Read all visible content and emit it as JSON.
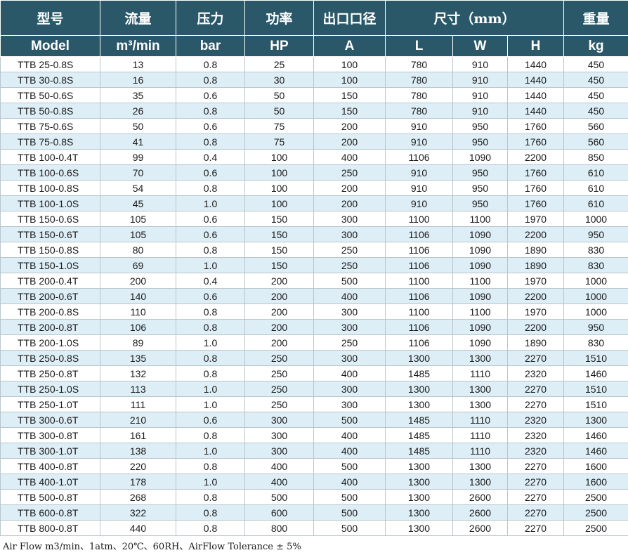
{
  "table": {
    "header_cn": {
      "model": "型号",
      "flow": "流量",
      "pressure": "压力",
      "power": "功率",
      "outlet": "出口口径",
      "size": "尺寸（mm）",
      "weight": "重量"
    },
    "header_en": {
      "model": "Model",
      "flow": "m³/min",
      "pressure": "bar",
      "power": "HP",
      "outlet": "A",
      "L": "L",
      "W": "W",
      "H": "H",
      "weight": "kg"
    },
    "rows": [
      {
        "model": "TTB  25-0.8S",
        "flow": "13",
        "pressure": "0.8",
        "hp": "25",
        "outlet": "100",
        "L": "780",
        "W": "910",
        "H": "1440",
        "kg": "450"
      },
      {
        "model": "TTB  30-0.8S",
        "flow": "16",
        "pressure": "0.8",
        "hp": "30",
        "outlet": "100",
        "L": "780",
        "W": "910",
        "H": "1440",
        "kg": "450"
      },
      {
        "model": "TTB  50-0.6S",
        "flow": "35",
        "pressure": "0.6",
        "hp": "50",
        "outlet": "150",
        "L": "780",
        "W": "910",
        "H": "1440",
        "kg": "450"
      },
      {
        "model": "TTB  50-0.8S",
        "flow": "26",
        "pressure": "0.8",
        "hp": "50",
        "outlet": "150",
        "L": "780",
        "W": "910",
        "H": "1440",
        "kg": "450"
      },
      {
        "model": "TTB  75-0.6S",
        "flow": "50",
        "pressure": "0.6",
        "hp": "75",
        "outlet": "200",
        "L": "910",
        "W": "950",
        "H": "1760",
        "kg": "560"
      },
      {
        "model": "TTB  75-0.8S",
        "flow": "41",
        "pressure": "0.8",
        "hp": "75",
        "outlet": "200",
        "L": "910",
        "W": "950",
        "H": "1760",
        "kg": "560"
      },
      {
        "model": "TTB 100-0.4T",
        "flow": "99",
        "pressure": "0.4",
        "hp": "100",
        "outlet": "400",
        "L": "1106",
        "W": "1090",
        "H": "2200",
        "kg": "850"
      },
      {
        "model": "TTB 100-0.6S",
        "flow": "70",
        "pressure": "0.6",
        "hp": "100",
        "outlet": "250",
        "L": "910",
        "W": "950",
        "H": "1760",
        "kg": "610"
      },
      {
        "model": "TTB 100-0.8S",
        "flow": "54",
        "pressure": "0.8",
        "hp": "100",
        "outlet": "200",
        "L": "910",
        "W": "950",
        "H": "1760",
        "kg": "610"
      },
      {
        "model": "TTB 100-1.0S",
        "flow": "45",
        "pressure": "1.0",
        "hp": "100",
        "outlet": "200",
        "L": "910",
        "W": "950",
        "H": "1760",
        "kg": "610"
      },
      {
        "model": "TTB 150-0.6S",
        "flow": "105",
        "pressure": "0.6",
        "hp": "150",
        "outlet": "300",
        "L": "1100",
        "W": "1100",
        "H": "1970",
        "kg": "1000"
      },
      {
        "model": "TTB 150-0.6T",
        "flow": "105",
        "pressure": "0.6",
        "hp": "150",
        "outlet": "300",
        "L": "1106",
        "W": "1090",
        "H": "2200",
        "kg": "950"
      },
      {
        "model": "TTB 150-0.8S",
        "flow": "80",
        "pressure": "0.8",
        "hp": "150",
        "outlet": "250",
        "L": "1106",
        "W": "1090",
        "H": "1890",
        "kg": "830"
      },
      {
        "model": "TTB 150-1.0S",
        "flow": "69",
        "pressure": "1.0",
        "hp": "150",
        "outlet": "250",
        "L": "1106",
        "W": "1090",
        "H": "1890",
        "kg": "830"
      },
      {
        "model": "TTB 200-0.4T",
        "flow": "200",
        "pressure": "0.4",
        "hp": "200",
        "outlet": "500",
        "L": "1100",
        "W": "1100",
        "H": "1970",
        "kg": "1000"
      },
      {
        "model": "TTB 200-0.6T",
        "flow": "140",
        "pressure": "0.6",
        "hp": "200",
        "outlet": "400",
        "L": "1106",
        "W": "1090",
        "H": "2200",
        "kg": "1000"
      },
      {
        "model": "TTB 200-0.8S",
        "flow": "110",
        "pressure": "0.8",
        "hp": "200",
        "outlet": "300",
        "L": "1100",
        "W": "1100",
        "H": "1970",
        "kg": "1000"
      },
      {
        "model": "TTB 200-0.8T",
        "flow": "106",
        "pressure": "0.8",
        "hp": "200",
        "outlet": "300",
        "L": "1106",
        "W": "1090",
        "H": "2200",
        "kg": "950"
      },
      {
        "model": "TTB 200-1.0S",
        "flow": "89",
        "pressure": "1.0",
        "hp": "200",
        "outlet": "250",
        "L": "1106",
        "W": "1090",
        "H": "1890",
        "kg": "830"
      },
      {
        "model": "TTB 250-0.8S",
        "flow": "135",
        "pressure": "0.8",
        "hp": "250",
        "outlet": "300",
        "L": "1300",
        "W": "1300",
        "H": "2270",
        "kg": "1510"
      },
      {
        "model": "TTB 250-0.8T",
        "flow": "132",
        "pressure": "0.8",
        "hp": "250",
        "outlet": "400",
        "L": "1485",
        "W": "1110",
        "H": "2320",
        "kg": "1460"
      },
      {
        "model": "TTB 250-1.0S",
        "flow": "113",
        "pressure": "1.0",
        "hp": "250",
        "outlet": "300",
        "L": "1300",
        "W": "1300",
        "H": "2270",
        "kg": "1510"
      },
      {
        "model": "TTB 250-1.0T",
        "flow": "111",
        "pressure": "1.0",
        "hp": "250",
        "outlet": "300",
        "L": "1300",
        "W": "1300",
        "H": "2270",
        "kg": "1510"
      },
      {
        "model": "TTB 300-0.6T",
        "flow": "210",
        "pressure": "0.6",
        "hp": "300",
        "outlet": "500",
        "L": "1485",
        "W": "1110",
        "H": "2320",
        "kg": "1300"
      },
      {
        "model": "TTB 300-0.8T",
        "flow": "161",
        "pressure": "0.8",
        "hp": "300",
        "outlet": "400",
        "L": "1485",
        "W": "1110",
        "H": "2320",
        "kg": "1460"
      },
      {
        "model": "TTB 300-1.0T",
        "flow": "138",
        "pressure": "1.0",
        "hp": "300",
        "outlet": "400",
        "L": "1485",
        "W": "1110",
        "H": "2320",
        "kg": "1460"
      },
      {
        "model": "TTB 400-0.8T",
        "flow": "220",
        "pressure": "0.8",
        "hp": "400",
        "outlet": "500",
        "L": "1300",
        "W": "1300",
        "H": "2270",
        "kg": "1600"
      },
      {
        "model": "TTB 400-1.0T",
        "flow": "178",
        "pressure": "1.0",
        "hp": "400",
        "outlet": "400",
        "L": "1300",
        "W": "1300",
        "H": "2270",
        "kg": "1600"
      },
      {
        "model": "TTB 500-0.8T",
        "flow": "268",
        "pressure": "0.8",
        "hp": "500",
        "outlet": "500",
        "L": "1300",
        "W": "2600",
        "H": "2270",
        "kg": "2500"
      },
      {
        "model": "TTB 600-0.8T",
        "flow": "322",
        "pressure": "0.8",
        "hp": "600",
        "outlet": "500",
        "L": "1300",
        "W": "2600",
        "H": "2270",
        "kg": "2500"
      },
      {
        "model": "TTB 800-0.8T",
        "flow": "440",
        "pressure": "0.8",
        "hp": "800",
        "outlet": "500",
        "L": "1300",
        "W": "2600",
        "H": "2270",
        "kg": "2500"
      }
    ]
  },
  "footnote": "Air Flow m3/min、1atm、20℃、60RH、AirFlow Tolerance ± 5%",
  "colors": {
    "header_bg": "#2a5868",
    "row_alt_bg": "#deeef6"
  }
}
